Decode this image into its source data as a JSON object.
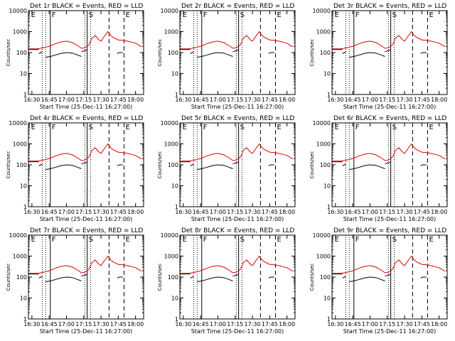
{
  "figure": {
    "panel_titles": [
      "Det 1r BLACK = Events, RED = LLD",
      "Det 2r BLACK = Events, RED = LLD",
      "Det 3r BLACK = Events, RED = LLD",
      "Det 4r BLACK = Events, RED = LLD",
      "Det 5r BLACK = Events, RED = LLD",
      "Det 6r BLACK = Events, RED = LLD",
      "Det 7r BLACK = Events, RED = LLD",
      "Det 8r BLACK = Events, RED = LLD",
      "Det 9r BLACK = Events, RED = LLD"
    ],
    "xlabel": "Start Time (25-Dec-11 16:27:00)",
    "ylabel": "Counts/sec",
    "colors": {
      "events": "#000000",
      "lld": "#e00000",
      "axes": "#000000"
    }
  },
  "chart_data": {
    "type": "line",
    "x_axis": {
      "ticks": [
        "16:30",
        "16:45",
        "17:00",
        "17:15",
        "17:30",
        "17:45",
        "18:00"
      ],
      "range": [
        "16:27:00",
        "18:07:00"
      ]
    },
    "y_axis": {
      "scale": "log",
      "range": [
        1,
        10000
      ],
      "tick_labels": [
        "1",
        "10",
        "100",
        "1000",
        "10000"
      ]
    },
    "markers": [
      {
        "time": "16:39",
        "style": "dotted"
      },
      {
        "time": "16:42",
        "style": "dotted"
      },
      {
        "time": "16:46",
        "style": "solid"
      },
      {
        "time": "17:16",
        "style": "dotted"
      },
      {
        "time": "17:18",
        "style": "solid"
      },
      {
        "time": "17:21",
        "style": "dotted"
      },
      {
        "time": "17:37",
        "style": "dashed"
      },
      {
        "time": "17:50",
        "style": "dashed"
      }
    ],
    "marker_letters": [
      {
        "letter": "E",
        "time": "16:28"
      },
      {
        "letter": "F",
        "time": "16:46"
      },
      {
        "letter": "S",
        "time": "17:18"
      },
      {
        "letter": "E",
        "time": "17:50"
      }
    ],
    "series": [
      {
        "name": "LLD",
        "x": [
          "16:27",
          "16:35",
          "16:40",
          "16:45",
          "16:50",
          "16:55",
          "17:00",
          "17:05",
          "17:10",
          "17:13",
          "17:16",
          "17:19",
          "17:20",
          "17:22",
          "17:25",
          "17:28",
          "17:30",
          "17:33",
          "17:36",
          "17:38",
          "17:40",
          "17:45",
          "17:50",
          "17:55",
          "18:00",
          "18:05"
        ],
        "values": [
          150,
          150,
          170,
          200,
          260,
          320,
          350,
          300,
          210,
          160,
          170,
          220,
          260,
          480,
          650,
          420,
          350,
          600,
          1000,
          700,
          550,
          400,
          380,
          330,
          280,
          190
        ]
      },
      {
        "name": "Events",
        "segments": [
          {
            "x": [
              "16:27",
              "16:32",
              "16:36"
            ],
            "values": [
              140,
              140,
              140
            ]
          },
          {
            "x": [
              "16:36",
              "16:38",
              "16:39"
            ],
            "values": [
              90,
              100,
              110
            ]
          },
          {
            "x": [
              "16:42",
              "16:46",
              "16:50",
              "16:55",
              "17:00",
              "17:05",
              "17:10",
              "17:13"
            ],
            "values": [
              60,
              65,
              75,
              90,
              100,
              95,
              75,
              65
            ]
          },
          {
            "x": [
              "17:13",
              "17:15",
              "17:17",
              "17:18"
            ],
            "values": [
              110,
              120,
              130,
              130
            ]
          },
          {
            "x": [
              "17:44",
              "17:46",
              "17:48",
              "17:49"
            ],
            "values": [
              90,
              100,
              100,
              100
            ]
          }
        ]
      }
    ]
  }
}
